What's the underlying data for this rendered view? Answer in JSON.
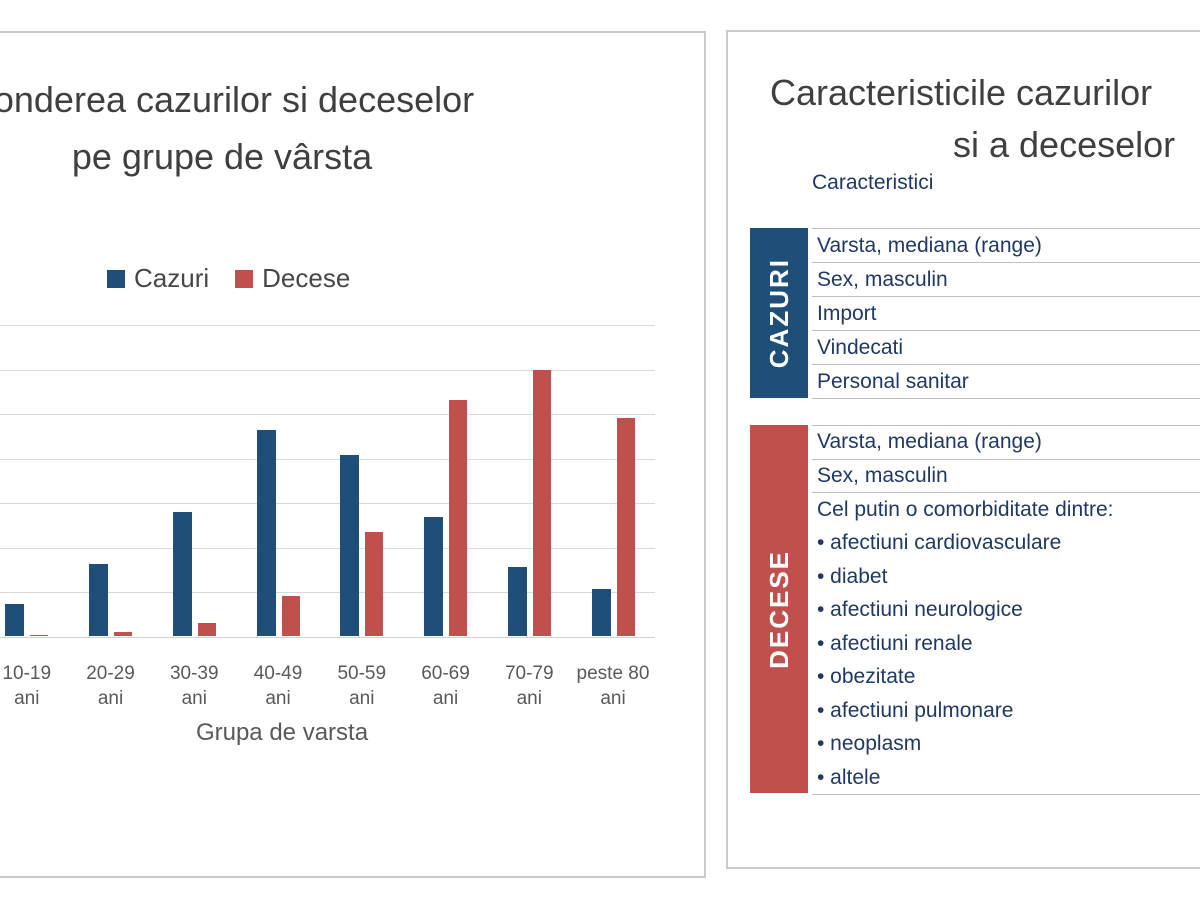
{
  "chart_data": {
    "type": "bar",
    "title": "Ponderea cazurilor si deceselor pe grupe de vârsta",
    "categories": [
      "10-19 ani",
      "20-29 ani",
      "30-39 ani",
      "40-49 ani",
      "50-59 ani",
      "60-69 ani",
      "70-79 ani",
      "peste 80 ani"
    ],
    "series": [
      {
        "name": "Cazuri",
        "color": "#1F4E79",
        "values": [
          3.7,
          8.1,
          14.0,
          23.2,
          20.4,
          13.4,
          7.8,
          5.3
        ]
      },
      {
        "name": "Decese",
        "color": "#C0504D",
        "values": [
          0.2,
          0.5,
          1.5,
          4.6,
          11.7,
          26.6,
          29.9,
          24.5
        ]
      }
    ],
    "xlabel": "Grupa de varsta",
    "ylabel": "",
    "ylim": [
      0,
      35
    ],
    "gridline_step": 5,
    "grid": true,
    "legend_position": "top",
    "note": "Figure cropped at left edge: y-axis tick labels and part of first bar group are not visible."
  },
  "left_panel": {
    "title_lines": [
      "Ponderea cazurilor si deceselor",
      "pe grupe de vârsta"
    ]
  },
  "right_panel": {
    "title_lines": [
      "Caracteristicile cazurilor",
      "si a deceselor"
    ],
    "column_header": "Caracteristici",
    "sections": [
      {
        "label": "CAZURI",
        "color": "#1F4E79",
        "rows": [
          "Varsta, mediana (range)",
          "Sex, masculin",
          "Import",
          "Vindecati",
          "Personal sanitar"
        ],
        "list": []
      },
      {
        "label": "DECESE",
        "color": "#C0504D",
        "rows": [
          "Varsta, mediana (range)",
          "Sex, masculin"
        ],
        "list": [
          "Cel putin o comorbiditate dintre:",
          "• afectiuni cardiovasculare",
          "• diabet",
          "• afectiuni neurologice",
          "• afectiuni renale",
          "• obezitate",
          "• afectiuni pulmonare",
          "• neoplasm",
          "• altele"
        ]
      }
    ]
  },
  "colors": {
    "accent_blue": "#1F4E79",
    "accent_red": "#C0504D",
    "title_text": "#3F3F3F",
    "axis_text": "#595959",
    "table_text": "#1F3864",
    "gridline": "#D9D9D9",
    "panel_border": "#CBCBCB"
  }
}
